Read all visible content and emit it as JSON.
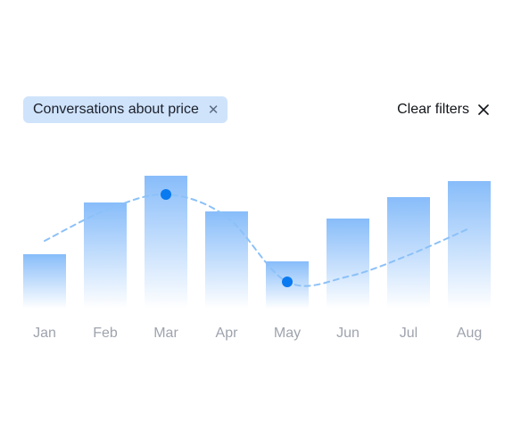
{
  "filter_chip": {
    "label": "Conversations about price",
    "close_icon": "close-icon"
  },
  "clear_filters": {
    "label": "Clear filters",
    "icon": "close-icon"
  },
  "colors": {
    "bar": "#7ab5f9",
    "trend": "#8cc1f8",
    "point": "#0a7af0",
    "chip_bg": "#cfe3fb",
    "tick": "#9ea3ad"
  },
  "chart_data": {
    "type": "bar",
    "categories": [
      "Jan",
      "Feb",
      "Mar",
      "Apr",
      "May",
      "Jun",
      "Jul",
      "Aug"
    ],
    "values": [
      61,
      119,
      149,
      109,
      53,
      101,
      125,
      143
    ],
    "trend_values": [
      76,
      110,
      128,
      103,
      30,
      36,
      60,
      90
    ],
    "highlighted_points": [
      {
        "category": "Mar",
        "value": 128
      },
      {
        "category": "May",
        "value": 30
      }
    ],
    "ylim": [
      0,
      160
    ],
    "grid": false,
    "legend": "none"
  }
}
